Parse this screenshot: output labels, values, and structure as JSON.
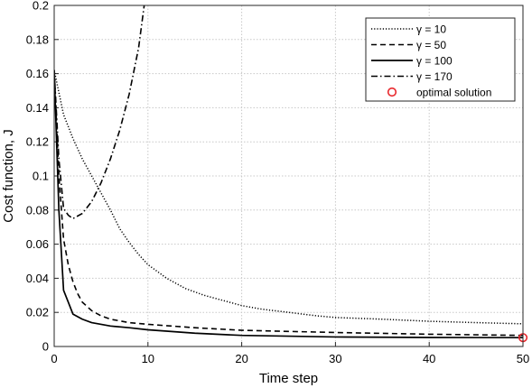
{
  "chart_data": {
    "type": "line",
    "xlabel": "Time step",
    "ylabel": "Cost function, J",
    "xlim": [
      0,
      50
    ],
    "ylim": [
      0,
      0.2
    ],
    "xticks": [
      0,
      10,
      20,
      30,
      40,
      50
    ],
    "yticks": [
      0,
      0.02,
      0.04,
      0.06,
      0.08,
      0.1,
      0.12,
      0.14,
      0.16,
      0.18,
      0.2
    ],
    "xtick_labels": [
      "0",
      "10",
      "20",
      "30",
      "40",
      "50"
    ],
    "ytick_labels": [
      "0",
      "0.02",
      "0.04",
      "0.06",
      "0.08",
      "0.1",
      "0.12",
      "0.14",
      "0.16",
      "0.18",
      "0.2"
    ],
    "grid": true,
    "legend_position": "top-right",
    "series": [
      {
        "name": "γ = 10",
        "style": "dotted",
        "color": "#000000",
        "x": [
          0,
          1,
          2,
          3,
          4,
          5,
          6,
          7,
          8,
          9,
          10,
          12,
          14,
          16,
          18,
          20,
          22,
          25,
          28,
          30,
          35,
          40,
          45,
          50
        ],
        "y": [
          0.162,
          0.136,
          0.122,
          0.11,
          0.1,
          0.09,
          0.08,
          0.069,
          0.061,
          0.054,
          0.048,
          0.04,
          0.034,
          0.03,
          0.027,
          0.024,
          0.022,
          0.02,
          0.018,
          0.017,
          0.016,
          0.0148,
          0.014,
          0.0133
        ]
      },
      {
        "name": "γ = 50",
        "style": "dashed",
        "color": "#000000",
        "x": [
          0,
          0.5,
          1,
          1.5,
          2,
          2.5,
          3,
          4,
          5,
          6,
          8,
          10,
          15,
          20,
          30,
          40,
          50
        ],
        "y": [
          0.162,
          0.1,
          0.063,
          0.048,
          0.038,
          0.031,
          0.026,
          0.021,
          0.018,
          0.016,
          0.014,
          0.013,
          0.011,
          0.0095,
          0.0082,
          0.0072,
          0.0065
        ]
      },
      {
        "name": "γ = 100",
        "style": "solid",
        "color": "#000000",
        "x": [
          0,
          0.5,
          1,
          1.5,
          2,
          3,
          4,
          5,
          6,
          8,
          10,
          15,
          20,
          30,
          40,
          50
        ],
        "y": [
          0.162,
          0.08,
          0.033,
          0.026,
          0.019,
          0.016,
          0.014,
          0.013,
          0.012,
          0.011,
          0.0098,
          0.0078,
          0.0065,
          0.0056,
          0.0053,
          0.0052
        ]
      },
      {
        "name": "γ = 170",
        "style": "dashdot",
        "color": "#000000",
        "x": [
          0,
          0.5,
          1,
          1.5,
          2,
          3,
          4,
          5,
          6,
          7,
          8,
          9,
          9.6
        ],
        "y": [
          0.162,
          0.11,
          0.081,
          0.077,
          0.075,
          0.078,
          0.085,
          0.096,
          0.11,
          0.127,
          0.148,
          0.175,
          0.2
        ]
      }
    ],
    "markers": [
      {
        "name": "optimal solution",
        "shape": "circle",
        "color": "#e8282d",
        "x": 50,
        "y": 0.0052
      }
    ]
  }
}
